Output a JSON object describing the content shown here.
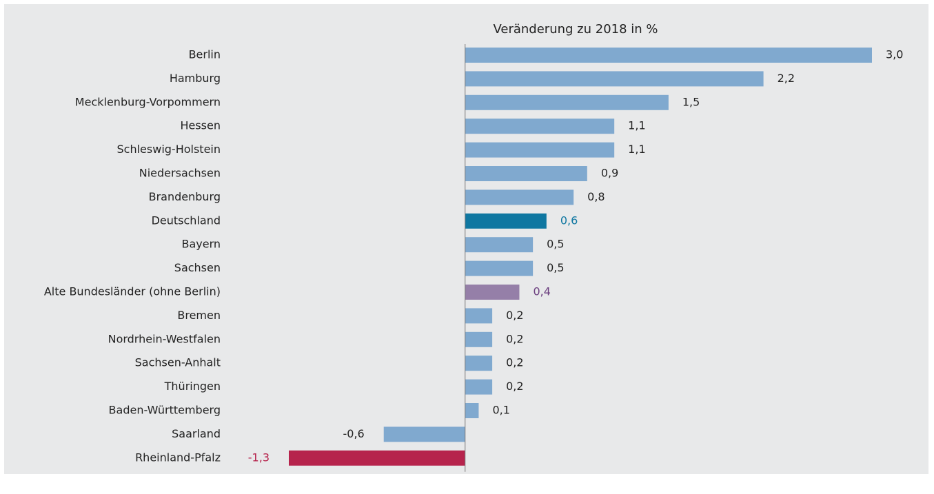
{
  "chart_data": {
    "type": "barh",
    "title": "Veränderung zu 2018 in %",
    "categories": [
      "Berlin",
      "Hamburg",
      "Mecklenburg-Vorpommern",
      "Hessen",
      "Schleswig-Holstein",
      "Niedersachsen",
      "Brandenburg",
      "Deutschland",
      "Bayern",
      "Sachsen",
      "Alte Bundesländer (ohne Berlin)",
      "Bremen",
      "Nordrhein-Westfalen",
      "Sachsen-Anhalt",
      "Thüringen",
      "Baden-Württemberg",
      "Saarland",
      "Rheinland-Pfalz"
    ],
    "values": [
      3.0,
      2.2,
      1.5,
      1.1,
      1.1,
      0.9,
      0.8,
      0.6,
      0.5,
      0.5,
      0.4,
      0.2,
      0.2,
      0.2,
      0.2,
      0.1,
      -0.6,
      -1.3
    ],
    "value_labels": [
      "3,0",
      "2,2",
      "1,5",
      "1,1",
      "1,1",
      "0,9",
      "0,8",
      "0,6",
      "0,5",
      "0,5",
      "0,4",
      "0,2",
      "0,2",
      "0,2",
      "0,2",
      "0,1",
      "-0,6",
      "-1,3"
    ],
    "colors": [
      "#80a9cf",
      "#80a9cf",
      "#80a9cf",
      "#80a9cf",
      "#80a9cf",
      "#80a9cf",
      "#80a9cf",
      "#0f77a1",
      "#80a9cf",
      "#80a9cf",
      "#957fa8",
      "#80a9cf",
      "#80a9cf",
      "#80a9cf",
      "#80a9cf",
      "#80a9cf",
      "#80a9cf",
      "#b6234c"
    ],
    "label_colors": [
      "#222222",
      "#222222",
      "#222222",
      "#222222",
      "#222222",
      "#222222",
      "#222222",
      "#0f77a1",
      "#222222",
      "#222222",
      "#6b3f7f",
      "#222222",
      "#222222",
      "#222222",
      "#222222",
      "#222222",
      "#222222",
      "#b6234c"
    ],
    "xlim": [
      -1.3,
      3.0
    ]
  }
}
